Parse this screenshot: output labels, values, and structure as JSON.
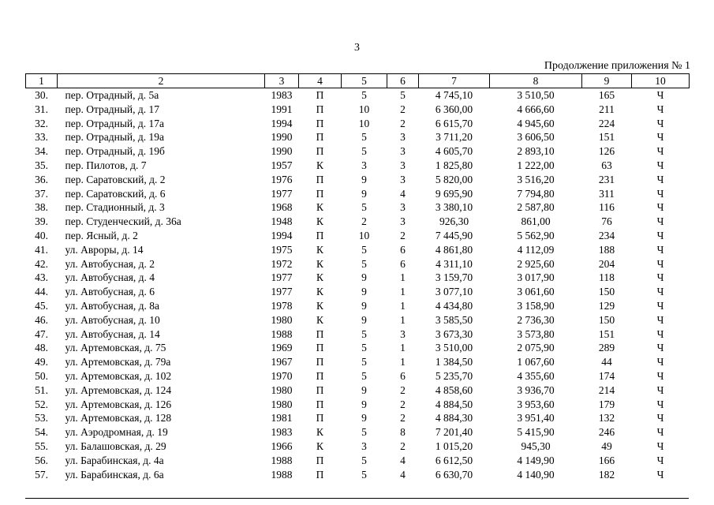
{
  "page": {
    "number": "3",
    "continuation_note": "Продолжение приложения № 1"
  },
  "table": {
    "column_numbers": [
      "1",
      "2",
      "3",
      "4",
      "5",
      "6",
      "7",
      "8",
      "9",
      "10"
    ],
    "rows": [
      [
        "30.",
        "пер. Отрадный, д. 5а",
        "1983",
        "П",
        "5",
        "5",
        "4 745,10",
        "3 510,50",
        "165",
        "Ч"
      ],
      [
        "31.",
        "пер. Отрадный, д. 17",
        "1991",
        "П",
        "10",
        "2",
        "6 360,00",
        "4 666,60",
        "211",
        "Ч"
      ],
      [
        "32.",
        "пер. Отрадный, д. 17а",
        "1994",
        "П",
        "10",
        "2",
        "6 615,70",
        "4 945,60",
        "224",
        "Ч"
      ],
      [
        "33.",
        "пер. Отрадный, д. 19а",
        "1990",
        "П",
        "5",
        "3",
        "3 711,20",
        "3 606,50",
        "151",
        "Ч"
      ],
      [
        "34.",
        "пер. Отрадный, д. 19б",
        "1990",
        "П",
        "5",
        "3",
        "4 605,70",
        "2 893,10",
        "126",
        "Ч"
      ],
      [
        "35.",
        "пер. Пилотов, д. 7",
        "1957",
        "К",
        "3",
        "3",
        "1 825,80",
        "1 222,00",
        "63",
        "Ч"
      ],
      [
        "36.",
        "пер. Саратовский, д. 2",
        "1976",
        "П",
        "9",
        "3",
        "5 820,00",
        "3 516,20",
        "231",
        "Ч"
      ],
      [
        "37.",
        "пер. Саратовский, д. 6",
        "1977",
        "П",
        "9",
        "4",
        "9 695,90",
        "7 794,80",
        "311",
        "Ч"
      ],
      [
        "38.",
        "пер. Стадионный, д. 3",
        "1968",
        "К",
        "5",
        "3",
        "3 380,10",
        "2 587,80",
        "116",
        "Ч"
      ],
      [
        "39.",
        "пер. Студенческий, д. 36а",
        "1948",
        "К",
        "2",
        "3",
        "926,30",
        "861,00",
        "76",
        "Ч"
      ],
      [
        "40.",
        "пер. Ясный, д. 2",
        "1994",
        "П",
        "10",
        "2",
        "7 445,90",
        "5 562,90",
        "234",
        "Ч"
      ],
      [
        "41.",
        "ул. Авроры, д. 14",
        "1975",
        "К",
        "5",
        "6",
        "4 861,80",
        "4 112,09",
        "188",
        "Ч"
      ],
      [
        "42.",
        "ул. Автобусная, д. 2",
        "1972",
        "К",
        "5",
        "6",
        "4 311,10",
        "2 925,60",
        "204",
        "Ч"
      ],
      [
        "43.",
        "ул. Автобусная, д. 4",
        "1977",
        "К",
        "9",
        "1",
        "3 159,70",
        "3 017,90",
        "118",
        "Ч"
      ],
      [
        "44.",
        "ул. Автобусная, д. 6",
        "1977",
        "К",
        "9",
        "1",
        "3 077,10",
        "3 061,60",
        "150",
        "Ч"
      ],
      [
        "45.",
        "ул. Автобусная, д. 8а",
        "1978",
        "К",
        "9",
        "1",
        "4 434,80",
        "3 158,90",
        "129",
        "Ч"
      ],
      [
        "46.",
        "ул. Автобусная, д. 10",
        "1980",
        "К",
        "9",
        "1",
        "3 585,50",
        "2 736,30",
        "150",
        "Ч"
      ],
      [
        "47.",
        "ул. Автобусная, д. 14",
        "1988",
        "П",
        "5",
        "3",
        "3 673,30",
        "3 573,80",
        "151",
        "Ч"
      ],
      [
        "48.",
        "ул. Артемовская, д. 75",
        "1969",
        "П",
        "5",
        "1",
        "3 510,00",
        "2 075,90",
        "289",
        "Ч"
      ],
      [
        "49.",
        "ул. Артемовская, д. 79а",
        "1967",
        "П",
        "5",
        "1",
        "1 384,50",
        "1 067,60",
        "44",
        "Ч"
      ],
      [
        "50.",
        "ул. Артемовская, д. 102",
        "1970",
        "П",
        "5",
        "6",
        "5 235,70",
        "4 355,60",
        "174",
        "Ч"
      ],
      [
        "51.",
        "ул. Артемовская, д. 124",
        "1980",
        "П",
        "9",
        "2",
        "4 858,60",
        "3 936,70",
        "214",
        "Ч"
      ],
      [
        "52.",
        "ул. Артемовская, д. 126",
        "1980",
        "П",
        "9",
        "2",
        "4 884,50",
        "3 953,60",
        "179",
        "Ч"
      ],
      [
        "53.",
        "ул. Артемовская, д. 128",
        "1981",
        "П",
        "9",
        "2",
        "4 884,30",
        "3 951,40",
        "132",
        "Ч"
      ],
      [
        "54.",
        "ул. Аэродромная, д. 19",
        "1983",
        "К",
        "5",
        "8",
        "7 201,40",
        "5 415,90",
        "246",
        "Ч"
      ],
      [
        "55.",
        "ул. Балашовская, д. 29",
        "1966",
        "К",
        "3",
        "2",
        "1 015,20",
        "945,30",
        "49",
        "Ч"
      ],
      [
        "56.",
        "ул. Барабинская, д. 4а",
        "1988",
        "П",
        "5",
        "4",
        "6 612,50",
        "4 149,90",
        "166",
        "Ч"
      ],
      [
        "57.",
        "ул. Барабинская, д. 6а",
        "1988",
        "П",
        "5",
        "4",
        "6 630,70",
        "4 140,90",
        "182",
        "Ч"
      ]
    ]
  }
}
